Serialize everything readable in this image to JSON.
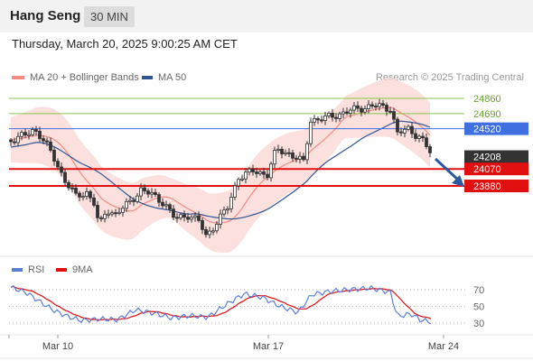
{
  "header": {
    "title": "Hang Seng",
    "timeframe": "30 MIN"
  },
  "datetime": "Thursday, March 20, 2025 9:00:25 AM CET",
  "legend": {
    "ma20": {
      "label": "MA 20 + Bollinger Bands",
      "color": "#f28b82"
    },
    "ma50": {
      "label": "MA 50",
      "color": "#2f5597"
    },
    "credit": "Research © 2025 Trading Central"
  },
  "levels": [
    {
      "value": "24860",
      "kind": "resistance",
      "color": "#8bc34a"
    },
    {
      "value": "24690",
      "kind": "resistance",
      "color": "#8bc34a"
    },
    {
      "value": "24520",
      "kind": "pivot",
      "color": "#3f6fe0"
    },
    {
      "value": "24208",
      "kind": "last",
      "color": "#333333"
    },
    {
      "value": "24070",
      "kind": "support",
      "color": "#e01010"
    },
    {
      "value": "23880",
      "kind": "support",
      "color": "#e01010"
    }
  ],
  "rsi_panel": {
    "legend": {
      "rsi": "RSI",
      "ma": "9MA"
    },
    "rsi_color": "#5b7fd6",
    "ma_color": "#e01010",
    "ticks": [
      "70",
      "50",
      "30"
    ]
  },
  "x_axis": {
    "labels": [
      "Mar 10",
      "Mar 17",
      "Mar 24"
    ]
  },
  "chart_data": {
    "type": "candlestick",
    "price_levels": [
      24860,
      24690,
      24520,
      24208,
      24070,
      23880
    ],
    "last_price": 24208,
    "rsi_ticks": [
      70,
      50,
      30
    ],
    "x_labels": [
      "Mar 10",
      "Mar 17",
      "Mar 24"
    ],
    "projection": "down"
  }
}
